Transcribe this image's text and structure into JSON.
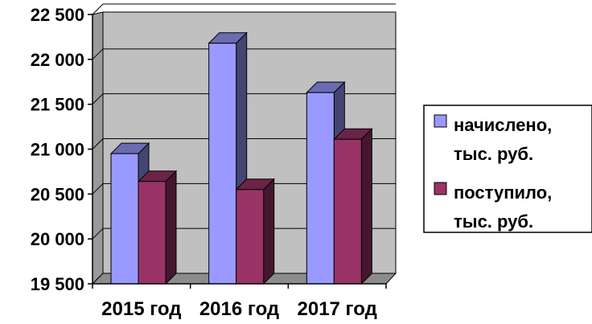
{
  "chart_data": {
    "type": "bar",
    "style": "3d-clustered-column",
    "categories": [
      "2015 год",
      "2016 год",
      "2017 год"
    ],
    "series": [
      {
        "name_lines": [
          "начислено,",
          "тыс. руб."
        ],
        "values": [
          20950,
          22180,
          21630
        ],
        "color": "#9999ff"
      },
      {
        "name_lines": [
          "поступило,",
          "тыс. руб."
        ],
        "values": [
          20640,
          20550,
          21110
        ],
        "color": "#993366"
      }
    ],
    "yticks": [
      "19 500",
      "20 000",
      "20 500",
      "21 000",
      "21 500",
      "22 000",
      "22 500"
    ],
    "ylim": [
      19500,
      22500
    ],
    "ytick_step": 500,
    "grid": true,
    "legend_position": "right",
    "plot_background": "#c0c0c0"
  }
}
